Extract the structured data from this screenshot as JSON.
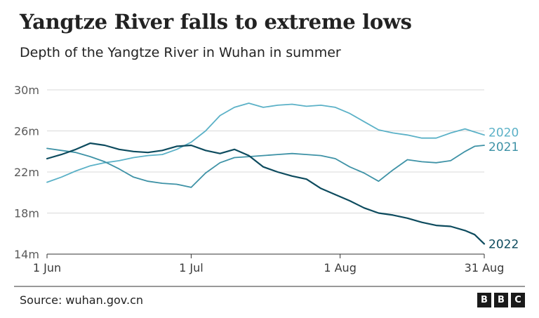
{
  "title": "Yangtze River falls to extreme lows",
  "subtitle": "Depth of the Yangtze River in Wuhan in summer",
  "source": "Source: wuhan.gov.cn",
  "logo": [
    "B",
    "B",
    "C"
  ],
  "chart_data": {
    "type": "line",
    "ylim": [
      14,
      30
    ],
    "y_ticks": [
      30,
      26,
      22,
      18,
      14
    ],
    "y_tick_labels": [
      "30m",
      "26m",
      "22m",
      "18m",
      "14m"
    ],
    "x_ticks": [
      0,
      30,
      61,
      91
    ],
    "x_tick_labels": [
      "1 Jun",
      "1 Jul",
      "1 Aug",
      "31 Aug"
    ],
    "series": [
      {
        "name": "2020",
        "color": "#5bb1c7",
        "values": [
          [
            0,
            21.0
          ],
          [
            3,
            21.5
          ],
          [
            6,
            22.1
          ],
          [
            9,
            22.6
          ],
          [
            12,
            22.9
          ],
          [
            15,
            23.1
          ],
          [
            18,
            23.4
          ],
          [
            21,
            23.6
          ],
          [
            24,
            23.7
          ],
          [
            27,
            24.2
          ],
          [
            30,
            24.9
          ],
          [
            33,
            26.0
          ],
          [
            36,
            27.5
          ],
          [
            39,
            28.3
          ],
          [
            42,
            28.7
          ],
          [
            45,
            28.3
          ],
          [
            48,
            28.5
          ],
          [
            51,
            28.6
          ],
          [
            54,
            28.4
          ],
          [
            57,
            28.5
          ],
          [
            60,
            28.3
          ],
          [
            63,
            27.7
          ],
          [
            66,
            26.9
          ],
          [
            69,
            26.1
          ],
          [
            72,
            25.8
          ],
          [
            75,
            25.6
          ],
          [
            78,
            25.3
          ],
          [
            81,
            25.3
          ],
          [
            84,
            25.8
          ],
          [
            87,
            26.2
          ],
          [
            89,
            25.9
          ],
          [
            91,
            25.6
          ]
        ]
      },
      {
        "name": "2021",
        "color": "#3e92a6",
        "values": [
          [
            0,
            24.3
          ],
          [
            3,
            24.1
          ],
          [
            6,
            23.9
          ],
          [
            9,
            23.5
          ],
          [
            12,
            23.0
          ],
          [
            15,
            22.3
          ],
          [
            18,
            21.5
          ],
          [
            21,
            21.1
          ],
          [
            24,
            20.9
          ],
          [
            27,
            20.8
          ],
          [
            30,
            20.5
          ],
          [
            33,
            21.9
          ],
          [
            36,
            22.9
          ],
          [
            39,
            23.4
          ],
          [
            42,
            23.5
          ],
          [
            45,
            23.6
          ],
          [
            48,
            23.7
          ],
          [
            51,
            23.8
          ],
          [
            54,
            23.7
          ],
          [
            57,
            23.6
          ],
          [
            60,
            23.3
          ],
          [
            63,
            22.5
          ],
          [
            66,
            21.9
          ],
          [
            69,
            21.1
          ],
          [
            72,
            22.2
          ],
          [
            75,
            23.2
          ],
          [
            78,
            23.0
          ],
          [
            81,
            22.9
          ],
          [
            84,
            23.1
          ],
          [
            87,
            24.0
          ],
          [
            89,
            24.5
          ],
          [
            91,
            24.6
          ]
        ]
      },
      {
        "name": "2022",
        "color": "#0d4b5e",
        "values": [
          [
            0,
            23.3
          ],
          [
            3,
            23.7
          ],
          [
            6,
            24.2
          ],
          [
            9,
            24.8
          ],
          [
            12,
            24.6
          ],
          [
            15,
            24.2
          ],
          [
            18,
            24.0
          ],
          [
            21,
            23.9
          ],
          [
            24,
            24.1
          ],
          [
            27,
            24.5
          ],
          [
            30,
            24.6
          ],
          [
            33,
            24.1
          ],
          [
            36,
            23.8
          ],
          [
            39,
            24.2
          ],
          [
            42,
            23.6
          ],
          [
            45,
            22.5
          ],
          [
            48,
            22.0
          ],
          [
            51,
            21.6
          ],
          [
            54,
            21.3
          ],
          [
            57,
            20.4
          ],
          [
            60,
            19.8
          ],
          [
            63,
            19.2
          ],
          [
            66,
            18.5
          ],
          [
            69,
            18.0
          ],
          [
            72,
            17.8
          ],
          [
            75,
            17.5
          ],
          [
            78,
            17.1
          ],
          [
            81,
            16.8
          ],
          [
            84,
            16.7
          ],
          [
            87,
            16.3
          ],
          [
            89,
            15.9
          ],
          [
            91,
            15.0
          ]
        ]
      }
    ]
  }
}
